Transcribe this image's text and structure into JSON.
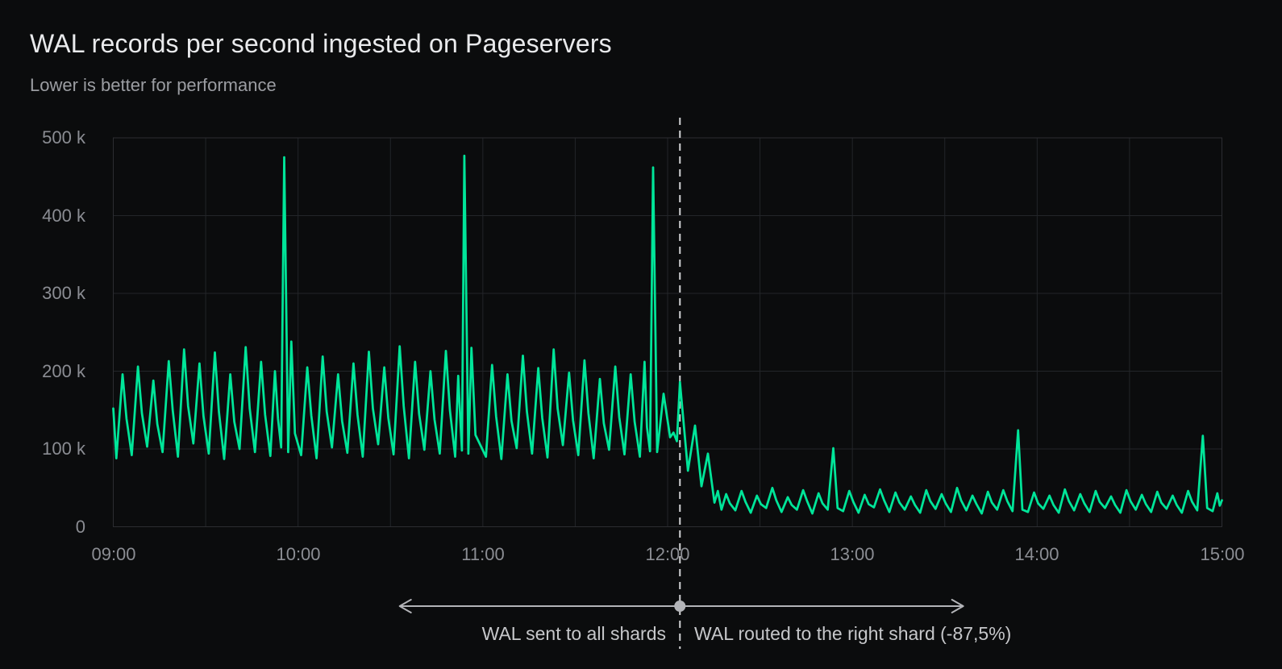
{
  "page": {
    "title": "WAL records per second ingested on Pageservers",
    "subtitle": "Lower is better for performance"
  },
  "colors": {
    "background": "#0b0c0d",
    "grid": "#232529",
    "border": "#2c2d31",
    "line": "#00e599",
    "title_text": "#e9eaec",
    "subtitle_text": "#9b9da2",
    "axis_text": "#8b8d93",
    "divider": "#d2d3d5",
    "annotation_line": "#b3b4b8",
    "annotation_text": "#c6c7ca"
  },
  "chart_data": {
    "type": "line",
    "title": "WAL records per second ingested on Pageservers",
    "subtitle": "Lower is better for performance",
    "x_ticks": [
      "09:00",
      "10:00",
      "11:00",
      "12:00",
      "13:00",
      "14:00",
      "15:00"
    ],
    "x_tick_minutes": [
      0,
      60,
      120,
      180,
      240,
      300,
      360
    ],
    "x_minor_grid_minutes": 30,
    "xlim_minutes": [
      0,
      360
    ],
    "y_ticks": [
      "0",
      "100 k",
      "200 k",
      "300 k",
      "400 k",
      "500 k"
    ],
    "y_tick_values_k": [
      0,
      100,
      200,
      300,
      400,
      500
    ],
    "ylim_k": [
      0,
      500
    ],
    "grid": true,
    "legend": false,
    "y_unit": "WAL records per second (thousands)",
    "series": [
      {
        "name": "WAL records ingested per second",
        "color": "#00e599",
        "points_format": "[minutes_after_09:00, thousand_records_per_second]",
        "points": [
          [
            0,
            152
          ],
          [
            1,
            88
          ],
          [
            3,
            196
          ],
          [
            4.3,
            139
          ],
          [
            6,
            92
          ],
          [
            8,
            206
          ],
          [
            9.3,
            146
          ],
          [
            11,
            103
          ],
          [
            13,
            188
          ],
          [
            14.3,
            132
          ],
          [
            16,
            96
          ],
          [
            18,
            213
          ],
          [
            19.3,
            150
          ],
          [
            21,
            90
          ],
          [
            23,
            228
          ],
          [
            24.3,
            155
          ],
          [
            26,
            107
          ],
          [
            28,
            210
          ],
          [
            29.3,
            142
          ],
          [
            31,
            94
          ],
          [
            33,
            224
          ],
          [
            34.3,
            148
          ],
          [
            36,
            87
          ],
          [
            38,
            196
          ],
          [
            39.3,
            135
          ],
          [
            41,
            100
          ],
          [
            43,
            231
          ],
          [
            44.3,
            152
          ],
          [
            46,
            96
          ],
          [
            48,
            212
          ],
          [
            49.3,
            144
          ],
          [
            51,
            91
          ],
          [
            52.5,
            200
          ],
          [
            53.5,
            139
          ],
          [
            54.5,
            102
          ],
          [
            55.5,
            475
          ],
          [
            56.8,
            96
          ],
          [
            57.8,
            238
          ],
          [
            59,
            120
          ],
          [
            61,
            92
          ],
          [
            63,
            205
          ],
          [
            64.3,
            143
          ],
          [
            66,
            88
          ],
          [
            68,
            219
          ],
          [
            69.3,
            148
          ],
          [
            71,
            102
          ],
          [
            73,
            196
          ],
          [
            74.3,
            136
          ],
          [
            76,
            95
          ],
          [
            78,
            210
          ],
          [
            79.3,
            144
          ],
          [
            81,
            90
          ],
          [
            83,
            225
          ],
          [
            84.3,
            152
          ],
          [
            86,
            106
          ],
          [
            88,
            205
          ],
          [
            89.3,
            140
          ],
          [
            91,
            93
          ],
          [
            93,
            232
          ],
          [
            94.3,
            155
          ],
          [
            96,
            88
          ],
          [
            98,
            212
          ],
          [
            99.3,
            145
          ],
          [
            101,
            99
          ],
          [
            103,
            200
          ],
          [
            104.3,
            138
          ],
          [
            106,
            94
          ],
          [
            108,
            226
          ],
          [
            109.3,
            150
          ],
          [
            111,
            90
          ],
          [
            112,
            194
          ],
          [
            112.8,
            130
          ],
          [
            113.2,
            98
          ],
          [
            114,
            477
          ],
          [
            115.3,
            94
          ],
          [
            116.3,
            230
          ],
          [
            117.6,
            118
          ],
          [
            121,
            90
          ],
          [
            123,
            208
          ],
          [
            124.3,
            142
          ],
          [
            126,
            87
          ],
          [
            128,
            196
          ],
          [
            129.3,
            136
          ],
          [
            131,
            101
          ],
          [
            133,
            220
          ],
          [
            134.3,
            148
          ],
          [
            136,
            94
          ],
          [
            138,
            204
          ],
          [
            139.3,
            140
          ],
          [
            141,
            89
          ],
          [
            143,
            228
          ],
          [
            144.3,
            152
          ],
          [
            146,
            105
          ],
          [
            148,
            198
          ],
          [
            149.3,
            137
          ],
          [
            151,
            92
          ],
          [
            153,
            214
          ],
          [
            154.3,
            146
          ],
          [
            156,
            88
          ],
          [
            158,
            190
          ],
          [
            159.3,
            133
          ],
          [
            161,
            99
          ],
          [
            163,
            206
          ],
          [
            164.3,
            141
          ],
          [
            166,
            93
          ],
          [
            168,
            196
          ],
          [
            169.3,
            135
          ],
          [
            171,
            90
          ],
          [
            172.5,
            212
          ],
          [
            173.3,
            128
          ],
          [
            174.3,
            97
          ],
          [
            175.3,
            462
          ],
          [
            176.6,
            96
          ],
          [
            178.7,
            171
          ],
          [
            180.8,
            115
          ],
          [
            181.9,
            121
          ],
          [
            183,
            110
          ],
          [
            184,
            186
          ],
          [
            186.6,
            72
          ],
          [
            188.9,
            130
          ],
          [
            191,
            52
          ],
          [
            193.1,
            94
          ],
          [
            195.2,
            31
          ],
          [
            196.3,
            46
          ],
          [
            197.5,
            22
          ],
          [
            199,
            42
          ],
          [
            200.2,
            30
          ],
          [
            202,
            21
          ],
          [
            204,
            46
          ],
          [
            205.3,
            32
          ],
          [
            207,
            18
          ],
          [
            209,
            40
          ],
          [
            210.3,
            29
          ],
          [
            212,
            24
          ],
          [
            214,
            50
          ],
          [
            215.3,
            34
          ],
          [
            217,
            19
          ],
          [
            219,
            38
          ],
          [
            220.3,
            28
          ],
          [
            222,
            22
          ],
          [
            224,
            47
          ],
          [
            225.3,
            33
          ],
          [
            227,
            17
          ],
          [
            229,
            43
          ],
          [
            230.3,
            30
          ],
          [
            232,
            22
          ],
          [
            233.8,
            101
          ],
          [
            235.2,
            24
          ],
          [
            237,
            20
          ],
          [
            239,
            46
          ],
          [
            240.3,
            32
          ],
          [
            242,
            18
          ],
          [
            244,
            41
          ],
          [
            245.3,
            29
          ],
          [
            247,
            25
          ],
          [
            249,
            48
          ],
          [
            250.3,
            34
          ],
          [
            252,
            19
          ],
          [
            254,
            44
          ],
          [
            255.3,
            31
          ],
          [
            257,
            22
          ],
          [
            259,
            39
          ],
          [
            260.3,
            28
          ],
          [
            262,
            18
          ],
          [
            264,
            47
          ],
          [
            265.3,
            33
          ],
          [
            267,
            23
          ],
          [
            269,
            42
          ],
          [
            270.3,
            30
          ],
          [
            272,
            19
          ],
          [
            274,
            50
          ],
          [
            275.3,
            34
          ],
          [
            277,
            21
          ],
          [
            279,
            40
          ],
          [
            280.3,
            29
          ],
          [
            282,
            17
          ],
          [
            284,
            45
          ],
          [
            285.3,
            31
          ],
          [
            287,
            22
          ],
          [
            289,
            47
          ],
          [
            290.3,
            33
          ],
          [
            292,
            20
          ],
          [
            293.8,
            124
          ],
          [
            295.2,
            22
          ],
          [
            297,
            19
          ],
          [
            299,
            44
          ],
          [
            300.3,
            30
          ],
          [
            302,
            23
          ],
          [
            304,
            40
          ],
          [
            305.3,
            28
          ],
          [
            307,
            18
          ],
          [
            309,
            48
          ],
          [
            310.3,
            33
          ],
          [
            312,
            21
          ],
          [
            314,
            42
          ],
          [
            315.3,
            30
          ],
          [
            317,
            19
          ],
          [
            319,
            46
          ],
          [
            320.3,
            32
          ],
          [
            322,
            24
          ],
          [
            324,
            39
          ],
          [
            325.3,
            28
          ],
          [
            327,
            18
          ],
          [
            329,
            47
          ],
          [
            330.3,
            33
          ],
          [
            332,
            22
          ],
          [
            334,
            41
          ],
          [
            335.3,
            29
          ],
          [
            337,
            19
          ],
          [
            339,
            45
          ],
          [
            340.3,
            31
          ],
          [
            342,
            23
          ],
          [
            344,
            40
          ],
          [
            345.3,
            28
          ],
          [
            347,
            18
          ],
          [
            349,
            46
          ],
          [
            350.3,
            32
          ],
          [
            352,
            21
          ],
          [
            353.8,
            117
          ],
          [
            355.2,
            24
          ],
          [
            357,
            20
          ],
          [
            358.5,
            43
          ],
          [
            359.3,
            27
          ],
          [
            360,
            34
          ]
        ]
      }
    ],
    "annotations": {
      "divider_minutes": 184,
      "divider_time": "12:04",
      "divider_style": "dashed",
      "left_label": "WAL sent to all shards",
      "right_label": "WAL routed to the right shard (-87,5%)",
      "arrow_span_minutes": [
        93,
        276
      ],
      "hourly_spikes_k": [
        475,
        477,
        462,
        101,
        124,
        117
      ]
    }
  }
}
